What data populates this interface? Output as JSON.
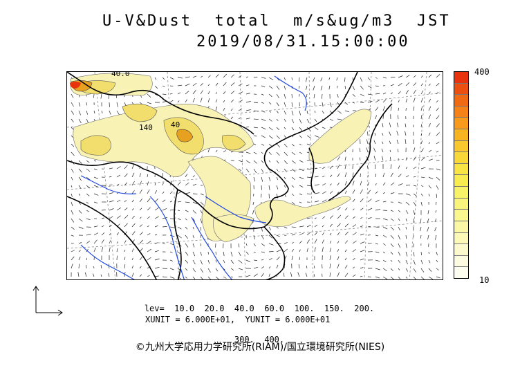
{
  "header": {
    "title": "U-V&Dust  total  m/s&ug/m3  JST",
    "datetime": "2019/08/31.15:00:00"
  },
  "map": {
    "contour_labels": [
      "40.0",
      "140",
      "40"
    ],
    "colors": {
      "dust_light": "#f8f2b4",
      "dust_medium": "#f2de6c",
      "dust_high": "#e8a020",
      "dust_peak": "#e8340c",
      "coastline": "#000000",
      "rivers": "#1e46e0",
      "grid": "#8a8a8a"
    }
  },
  "colorbar": {
    "max_label": "400",
    "min_label": "10",
    "colors": [
      "#e8340c",
      "#ec5010",
      "#f06a14",
      "#f48218",
      "#f89a1c",
      "#f8b420",
      "#f8c82c",
      "#f8d838",
      "#f8e444",
      "#f8ec50",
      "#f8f268",
      "#f8f47c",
      "#faf690",
      "#faf8a4",
      "#fcf8b8",
      "#fcfacc",
      "#fefce0",
      "#fefef0"
    ]
  },
  "legend": {
    "levels_line1": "lev=  10.0  20.0  40.0  60.0  100.  150.  200.",
    "levels_line2": "300.  400.",
    "units": "XUNIT = 6.000E+01,  YUNIT = 6.000E+01"
  },
  "credit": "©九州大学応用力学研究所(RIAM)/国立環境研究所(NIES)"
}
